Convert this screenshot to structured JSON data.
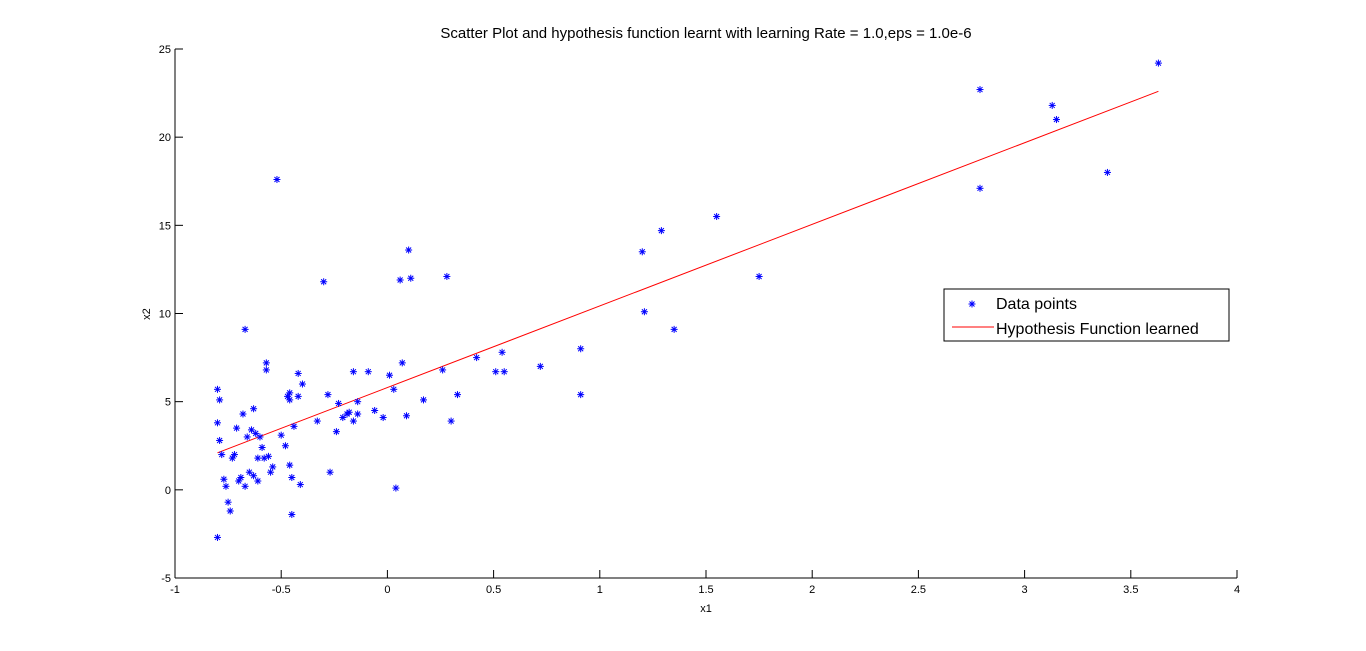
{
  "chart_data": {
    "type": "scatter",
    "title": "Scatter Plot and hypothesis function learnt with learning Rate = 1.0,eps = 1.0e-6",
    "xlabel": "x1",
    "ylabel": "x2",
    "xlim": [
      -1,
      4
    ],
    "ylim": [
      -5,
      25
    ],
    "xticks": [
      -1,
      -0.5,
      0,
      0.5,
      1,
      1.5,
      2,
      2.5,
      3,
      3.5,
      4
    ],
    "xtick_labels": [
      "-1",
      "-0.5",
      "0",
      "0.5",
      "1",
      "1.5",
      "2",
      "2.5",
      "3",
      "3.5",
      "4"
    ],
    "yticks": [
      -5,
      0,
      5,
      10,
      15,
      20,
      25
    ],
    "ytick_labels": [
      "-5",
      "0",
      "5",
      "10",
      "15",
      "20",
      "25"
    ],
    "grid": false,
    "legend_position": "right",
    "series": [
      {
        "name": "Data points",
        "kind": "scatter",
        "marker": "asterisk",
        "color": "#0000ff",
        "points": [
          [
            -0.8,
            -2.7
          ],
          [
            -0.8,
            5.7
          ],
          [
            -0.79,
            5.1
          ],
          [
            -0.8,
            3.8
          ],
          [
            -0.79,
            2.8
          ],
          [
            -0.78,
            2.0
          ],
          [
            -0.77,
            0.6
          ],
          [
            -0.76,
            0.2
          ],
          [
            -0.75,
            -0.7
          ],
          [
            -0.74,
            -1.2
          ],
          [
            -0.73,
            1.8
          ],
          [
            -0.72,
            2.0
          ],
          [
            -0.71,
            3.5
          ],
          [
            -0.7,
            0.5
          ],
          [
            -0.69,
            0.7
          ],
          [
            -0.68,
            4.3
          ],
          [
            -0.67,
            9.1
          ],
          [
            -0.67,
            0.2
          ],
          [
            -0.66,
            3.0
          ],
          [
            -0.65,
            1.0
          ],
          [
            -0.64,
            3.4
          ],
          [
            -0.63,
            4.6
          ],
          [
            -0.63,
            0.8
          ],
          [
            -0.62,
            3.2
          ],
          [
            -0.61,
            1.8
          ],
          [
            -0.61,
            0.5
          ],
          [
            -0.6,
            3.0
          ],
          [
            -0.59,
            2.4
          ],
          [
            -0.58,
            1.8
          ],
          [
            -0.57,
            6.8
          ],
          [
            -0.57,
            7.2
          ],
          [
            -0.56,
            1.9
          ],
          [
            -0.55,
            1.0
          ],
          [
            -0.54,
            1.3
          ],
          [
            -0.52,
            17.6
          ],
          [
            -0.5,
            3.1
          ],
          [
            -0.48,
            2.5
          ],
          [
            -0.47,
            5.3
          ],
          [
            -0.46,
            5.1
          ],
          [
            -0.46,
            5.5
          ],
          [
            -0.46,
            1.4
          ],
          [
            -0.45,
            0.7
          ],
          [
            -0.45,
            -1.4
          ],
          [
            -0.44,
            3.6
          ],
          [
            -0.42,
            6.6
          ],
          [
            -0.42,
            5.3
          ],
          [
            -0.41,
            0.3
          ],
          [
            -0.4,
            6.0
          ],
          [
            -0.33,
            3.9
          ],
          [
            -0.3,
            11.8
          ],
          [
            -0.28,
            5.4
          ],
          [
            -0.27,
            1.0
          ],
          [
            -0.24,
            3.3
          ],
          [
            -0.23,
            4.9
          ],
          [
            -0.21,
            4.1
          ],
          [
            -0.19,
            4.3
          ],
          [
            -0.18,
            4.4
          ],
          [
            -0.16,
            6.7
          ],
          [
            -0.16,
            3.9
          ],
          [
            -0.14,
            4.3
          ],
          [
            -0.14,
            5.0
          ],
          [
            -0.09,
            6.7
          ],
          [
            -0.06,
            4.5
          ],
          [
            -0.02,
            4.1
          ],
          [
            0.01,
            6.5
          ],
          [
            0.03,
            5.7
          ],
          [
            0.04,
            0.1
          ],
          [
            0.06,
            11.9
          ],
          [
            0.07,
            7.2
          ],
          [
            0.09,
            4.2
          ],
          [
            0.1,
            13.6
          ],
          [
            0.11,
            12.0
          ],
          [
            0.17,
            5.1
          ],
          [
            0.26,
            6.8
          ],
          [
            0.28,
            12.1
          ],
          [
            0.3,
            3.9
          ],
          [
            0.33,
            5.4
          ],
          [
            0.42,
            7.5
          ],
          [
            0.51,
            6.7
          ],
          [
            0.54,
            7.8
          ],
          [
            0.55,
            6.7
          ],
          [
            0.72,
            7.0
          ],
          [
            0.91,
            8.0
          ],
          [
            0.91,
            5.4
          ],
          [
            1.2,
            13.5
          ],
          [
            1.21,
            10.1
          ],
          [
            1.29,
            14.7
          ],
          [
            1.35,
            9.1
          ],
          [
            1.55,
            15.5
          ],
          [
            1.75,
            12.1
          ],
          [
            2.79,
            22.7
          ],
          [
            2.79,
            17.1
          ],
          [
            3.13,
            21.8
          ],
          [
            3.15,
            21.0
          ],
          [
            3.39,
            18.0
          ],
          [
            3.63,
            24.2
          ]
        ]
      },
      {
        "name": "Hypothesis Function learned",
        "kind": "line",
        "color": "#ff0000",
        "points": [
          [
            -0.8,
            2.1
          ],
          [
            3.63,
            22.6
          ]
        ]
      }
    ]
  }
}
